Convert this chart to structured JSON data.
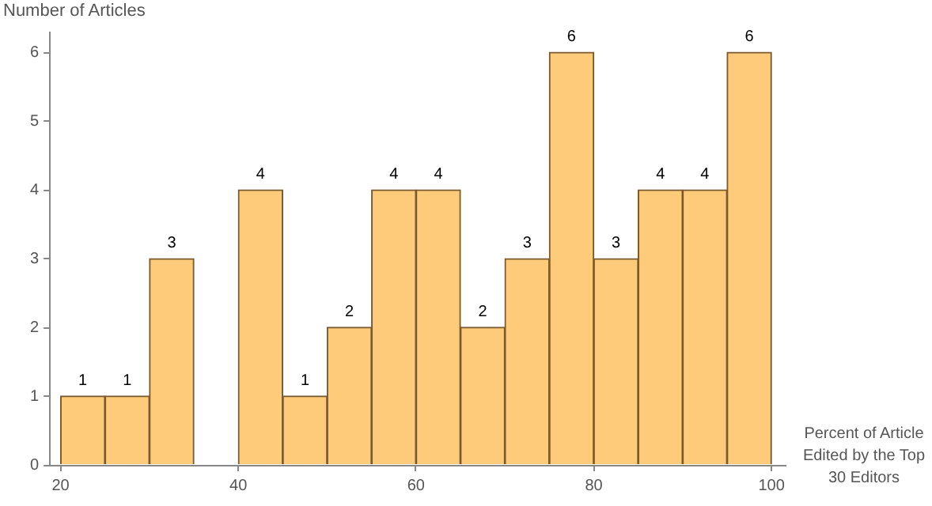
{
  "chart_data": {
    "type": "histogram",
    "ylabel": "Number of Articles",
    "xlabel": "Percent of Article Edited by the Top 30 Editors",
    "bins": [
      20,
      25,
      30,
      35,
      40,
      45,
      50,
      55,
      60,
      65,
      70,
      75,
      80,
      85,
      90,
      95,
      100
    ],
    "values": [
      1,
      1,
      3,
      0,
      4,
      1,
      2,
      4,
      4,
      2,
      3,
      6,
      3,
      4,
      4,
      6
    ],
    "value_labels": [
      "1",
      "1",
      "3",
      null,
      "4",
      "1",
      "2",
      "4",
      "4",
      "2",
      "3",
      "6",
      "3",
      "4",
      "4",
      "6"
    ],
    "color": "#fdcb7a",
    "xlim": [
      18.8,
      101.5
    ],
    "xticks": [
      20,
      40,
      60,
      80,
      100
    ],
    "ylim": [
      0,
      6.3
    ],
    "yticks": [
      0,
      1,
      2,
      3,
      4,
      5,
      6
    ],
    "grid": false,
    "legend": false
  }
}
